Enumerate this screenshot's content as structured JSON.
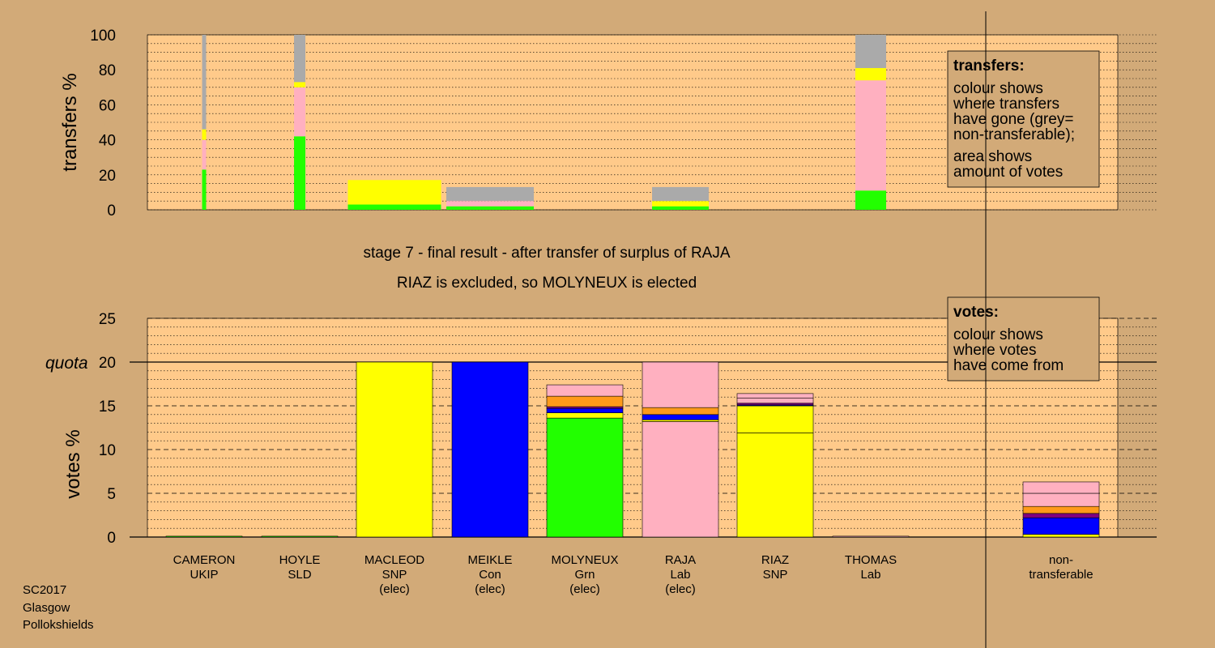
{
  "colors": {
    "background": "#d2aa78",
    "plot_bg": "#ffca8a",
    "legend_bg": "#d2aa78"
  },
  "chart_data": [
    {
      "type": "bar",
      "stacked": true,
      "ylabel": "transfers %",
      "ylim": [
        0,
        100
      ],
      "yticks": [
        "0",
        "20",
        "40",
        "60",
        "80",
        "100"
      ],
      "grid": "dotted horizontal lines every 5%",
      "legend_position": "top-right",
      "legend": {
        "title": "transfers:",
        "lines1": [
          "colour shows",
          "where transfers",
          "have gone (grey=",
          "non-transferable);"
        ],
        "lines2": [
          "area shows",
          "amount of votes"
        ]
      },
      "note": "bar width proportional to votes transferred from each candidate",
      "columns": [
        {
          "candidate": "CAMERON",
          "segments": [
            {
              "color": "#22ff00",
              "value": 23
            },
            {
              "color": "#ffb0c0",
              "value": 17
            },
            {
              "color": "#ffff00",
              "value": 6
            },
            {
              "color": "#aaaaaa",
              "value": 54
            }
          ]
        },
        {
          "candidate": "HOYLE",
          "segments": [
            {
              "color": "#22ff00",
              "value": 42
            },
            {
              "color": "#ffb0c0",
              "value": 28
            },
            {
              "color": "#ffff00",
              "value": 3
            },
            {
              "color": "#aaaaaa",
              "value": 27
            }
          ]
        },
        {
          "candidate": "MACLEOD",
          "segments": [
            {
              "color": "#22ff00",
              "value": 3
            },
            {
              "color": "#ffff00",
              "value": 14
            }
          ]
        },
        {
          "candidate": "MEIKLE",
          "segments": [
            {
              "color": "#22ff00",
              "value": 2
            },
            {
              "color": "#ffb0c0",
              "value": 3
            },
            {
              "color": "#aaaaaa",
              "value": 8
            }
          ]
        },
        {
          "candidate": "MOLYNEUX",
          "segments": []
        },
        {
          "candidate": "RAJA",
          "segments": [
            {
              "color": "#22ff00",
              "value": 2
            },
            {
              "color": "#ffff00",
              "value": 3
            },
            {
              "color": "#aaaaaa",
              "value": 8
            }
          ]
        },
        {
          "candidate": "RIAZ",
          "segments": []
        },
        {
          "candidate": "THOMAS",
          "segments": [
            {
              "color": "#22ff00",
              "value": 11
            },
            {
              "color": "#ffb0c0",
              "value": 63
            },
            {
              "color": "#ffff00",
              "value": 7
            },
            {
              "color": "#aaaaaa",
              "value": 19
            }
          ]
        }
      ]
    },
    {
      "type": "bar",
      "stacked": true,
      "title_lines": [
        "stage 7 - final result - after transfer of surplus of RAJA",
        "RIAZ is excluded, so MOLYNEUX is elected"
      ],
      "ylabel": "votes %",
      "ylim": [
        0,
        25
      ],
      "yticks": [
        "0",
        "5",
        "10",
        "15",
        "20",
        "25"
      ],
      "quota": 20,
      "quota_label": "quota",
      "grid": "dotted every 1%, dashed every 5%",
      "legend_position": "top-right",
      "legend": {
        "title": "votes:",
        "lines": [
          "colour shows",
          "where votes",
          "have come from"
        ]
      },
      "categories": [
        {
          "lines": [
            "CAMERON",
            "UKIP"
          ],
          "segments": [
            {
              "color": "#22ff00",
              "value": 0.1
            }
          ]
        },
        {
          "lines": [
            "HOYLE",
            "SLD"
          ],
          "segments": [
            {
              "color": "#22ff00",
              "value": 0.1
            }
          ]
        },
        {
          "lines": [
            "MACLEOD",
            "SNP",
            "(elec)"
          ],
          "segments": [
            {
              "color": "#ffff00",
              "value": 20
            }
          ]
        },
        {
          "lines": [
            "MEIKLE",
            "Con",
            "(elec)"
          ],
          "segments": [
            {
              "color": "#0000ff",
              "value": 20
            }
          ]
        },
        {
          "lines": [
            "MOLYNEUX",
            "Grn",
            "(elec)"
          ],
          "segments": [
            {
              "color": "#22ff00",
              "value": 13.6
            },
            {
              "color": "#ffff00",
              "value": 0.6
            },
            {
              "color": "#0000ff",
              "value": 0.5
            },
            {
              "color": "#800080",
              "value": 0.2
            },
            {
              "color": "#ff9a1a",
              "value": 1.2
            },
            {
              "color": "#ffb0c0",
              "value": 1.3
            }
          ]
        },
        {
          "lines": [
            "RAJA",
            "Lab",
            "(elec)"
          ],
          "segments": [
            {
              "color": "#ffb0c0",
              "value": 13.2
            },
            {
              "color": "#ffff00",
              "value": 0.2
            },
            {
              "color": "#0000ff",
              "value": 0.6
            },
            {
              "color": "#ff9a1a",
              "value": 0.8
            },
            {
              "color": "#ffb0c0",
              "value": 5.2
            }
          ]
        },
        {
          "lines": [
            "RIAZ",
            "SNP"
          ],
          "segments": [
            {
              "color": "#ffff00",
              "value": 11.9
            },
            {
              "color": "#ffff00",
              "value": 3.1
            },
            {
              "color": "#0000ff",
              "value": 0.1
            },
            {
              "color": "#800080",
              "value": 0.2
            },
            {
              "color": "#ffb0c0",
              "value": 0.6
            },
            {
              "color": "#ffb0c0",
              "value": 0.5
            }
          ]
        },
        {
          "lines": [
            "THOMAS",
            "Lab"
          ],
          "segments": [
            {
              "color": "#ffb0c0",
              "value": 0.1
            }
          ]
        },
        {
          "lines": [
            "non-",
            "transferable"
          ],
          "segments": [
            {
              "color": "#ffff00",
              "value": 0.3
            },
            {
              "color": "#0000ff",
              "value": 1.9
            },
            {
              "color": "#800080",
              "value": 0.5
            },
            {
              "color": "#ff9a1a",
              "value": 0.8
            },
            {
              "color": "#ffb0c0",
              "value": 1.5
            },
            {
              "color": "#ffb0c0",
              "value": 1.3
            }
          ]
        }
      ]
    }
  ],
  "footer": {
    "lines": [
      "SC2017",
      "Glasgow",
      "Pollokshields"
    ]
  }
}
